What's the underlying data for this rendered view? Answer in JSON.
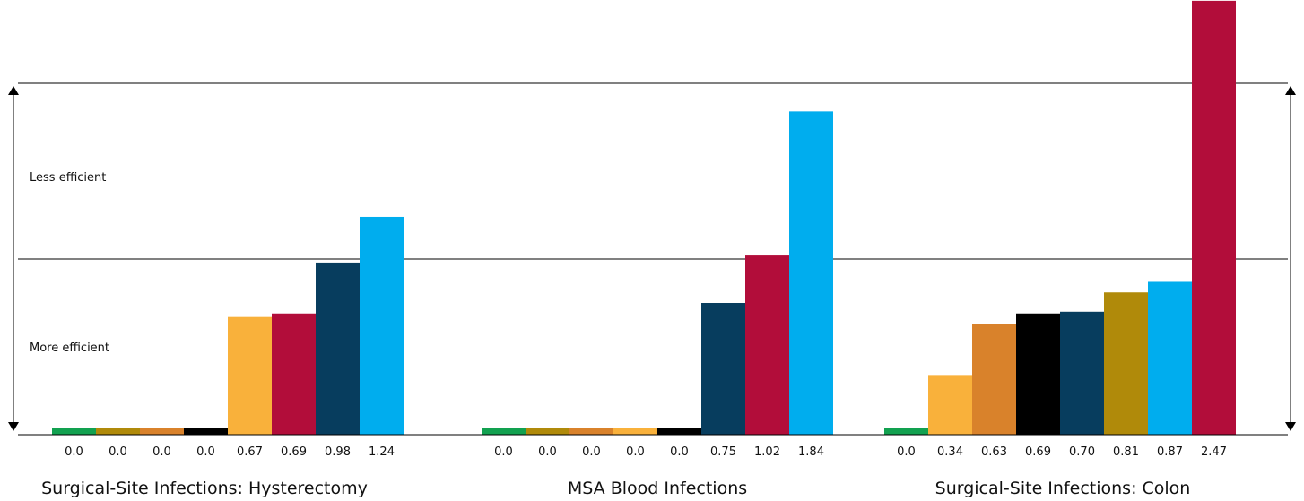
{
  "chart_data": {
    "type": "bar",
    "zone_labels": {
      "upper": "Less efficient",
      "lower": "More efficient"
    },
    "ylim": [
      0,
      2.47
    ],
    "threshold": 1.0,
    "groups": [
      {
        "title": "Surgical-Site Infections: Hysterectomy",
        "values": [
          0.0,
          0.0,
          0.0,
          0.0,
          0.67,
          0.69,
          0.98,
          1.24
        ],
        "labels": [
          "0.0",
          "0.0",
          "0.0",
          "0.0",
          "0.67",
          "0.69",
          "0.98",
          "1.24"
        ],
        "colors": [
          "#12a150",
          "#b08a0a",
          "#d9822b",
          "#000000",
          "#f9b13b",
          "#b20d3a",
          "#073d5e",
          "#00adee"
        ]
      },
      {
        "title": "MSA Blood Infections",
        "values": [
          0.0,
          0.0,
          0.0,
          0.0,
          0.0,
          0.75,
          1.02,
          1.84
        ],
        "labels": [
          "0.0",
          "0.0",
          "0.0",
          "0.0",
          "0.0",
          "0.75",
          "1.02",
          "1.84"
        ],
        "colors": [
          "#12a150",
          "#b08a0a",
          "#d9822b",
          "#f9b13b",
          "#000000",
          "#073d5e",
          "#b20d3a",
          "#00adee"
        ]
      },
      {
        "title": "Surgical-Site Infections: Colon",
        "values": [
          0.0,
          0.34,
          0.63,
          0.69,
          0.7,
          0.81,
          0.87,
          2.47
        ],
        "labels": [
          "0.0",
          "0.34",
          "0.63",
          "0.69",
          "0.70",
          "0.81",
          "0.87",
          "2.47"
        ],
        "colors": [
          "#12a150",
          "#f9b13b",
          "#d9822b",
          "#000000",
          "#073d5e",
          "#b08a0a",
          "#00adee",
          "#b20d3a"
        ]
      }
    ]
  }
}
